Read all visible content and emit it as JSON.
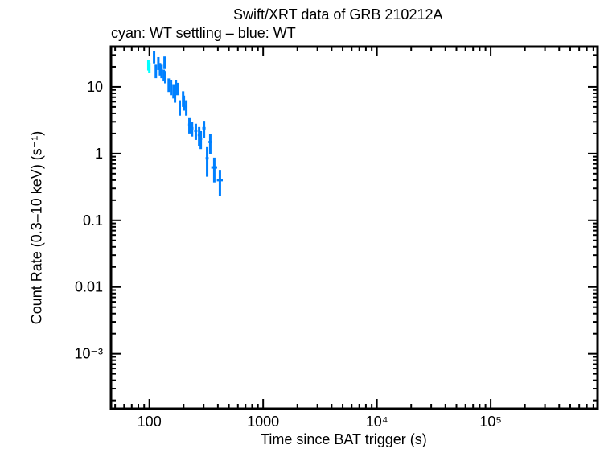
{
  "chart_data": {
    "type": "scatter",
    "title": "Swift/XRT data of GRB 210212A",
    "subtitle": "cyan: WT settling – blue: WT",
    "xlabel": "Time since BAT trigger (s)",
    "ylabel": "Count Rate (0.3–10 keV) (s⁻¹)",
    "xscale": "log",
    "yscale": "log",
    "xlim": [
      46,
      870000
    ],
    "ylim": [
      0.00015,
      40
    ],
    "x_ticks": [
      {
        "v": 100,
        "label": "100"
      },
      {
        "v": 1000,
        "label": "1000"
      },
      {
        "v": 10000,
        "label": "10⁴"
      },
      {
        "v": 100000,
        "label": "10⁵"
      }
    ],
    "y_ticks": [
      {
        "v": 10,
        "label": "10"
      },
      {
        "v": 1,
        "label": "1"
      },
      {
        "v": 0.1,
        "label": "0.1"
      },
      {
        "v": 0.01,
        "label": "0.01"
      },
      {
        "v": 0.001,
        "label": "10⁻³"
      }
    ],
    "grid": false,
    "series": [
      {
        "name": "WT settling",
        "color": "#00ffff",
        "points": [
          {
            "x": 98,
            "y": 21.6,
            "xerr": 2,
            "yerr": 4
          },
          {
            "x": 100,
            "y": 19.5,
            "xerr": 1.5,
            "yerr": 3.5
          }
        ]
      },
      {
        "name": "WT",
        "color": "#0080ff",
        "points": [
          {
            "x": 110,
            "y": 28.5,
            "xerr": 2,
            "yerr": 6
          },
          {
            "x": 114,
            "y": 17.5,
            "xerr": 2,
            "yerr": 4
          },
          {
            "x": 120,
            "y": 22.9,
            "xerr": 2,
            "yerr": 5
          },
          {
            "x": 124,
            "y": 18.8,
            "xerr": 2,
            "yerr": 4
          },
          {
            "x": 128,
            "y": 17.5,
            "xerr": 2,
            "yerr": 4
          },
          {
            "x": 136,
            "y": 23.5,
            "xerr": 2,
            "yerr": 5
          },
          {
            "x": 134,
            "y": 15.1,
            "xerr": 2,
            "yerr": 3
          },
          {
            "x": 138,
            "y": 14.3,
            "xerr": 2,
            "yerr": 3
          },
          {
            "x": 148,
            "y": 10.9,
            "xerr": 3,
            "yerr": 2.5
          },
          {
            "x": 155,
            "y": 10.0,
            "xerr": 3,
            "yerr": 2.5
          },
          {
            "x": 163,
            "y": 8.7,
            "xerr": 3,
            "yerr": 2
          },
          {
            "x": 171,
            "y": 10.0,
            "xerr": 3,
            "yerr": 2.5
          },
          {
            "x": 179,
            "y": 9.5,
            "xerr": 3,
            "yerr": 2
          },
          {
            "x": 168,
            "y": 7.8,
            "xerr": 3,
            "yerr": 2
          },
          {
            "x": 198,
            "y": 6.8,
            "xerr": 4,
            "yerr": 1.8
          },
          {
            "x": 185,
            "y": 5.0,
            "xerr": 4,
            "yerr": 1.3
          },
          {
            "x": 201,
            "y": 5.9,
            "xerr": 4,
            "yerr": 1.5
          },
          {
            "x": 211,
            "y": 5.0,
            "xerr": 5,
            "yerr": 1.3
          },
          {
            "x": 225,
            "y": 2.7,
            "xerr": 6,
            "yerr": 0.7
          },
          {
            "x": 237,
            "y": 2.4,
            "xerr": 7,
            "yerr": 0.6
          },
          {
            "x": 256,
            "y": 2.2,
            "xerr": 8,
            "yerr": 0.6
          },
          {
            "x": 274,
            "y": 1.9,
            "xerr": 8,
            "yerr": 0.6
          },
          {
            "x": 283,
            "y": 1.67,
            "xerr": 8,
            "yerr": 0.5
          },
          {
            "x": 302,
            "y": 2.4,
            "xerr": 10,
            "yerr": 0.7
          },
          {
            "x": 322,
            "y": 0.85,
            "xerr": 10,
            "yerr": 0.4
          },
          {
            "x": 343,
            "y": 1.49,
            "xerr": 12,
            "yerr": 0.5
          },
          {
            "x": 372,
            "y": 0.62,
            "xerr": 22,
            "yerr": 0.25
          },
          {
            "x": 417,
            "y": 0.4,
            "xerr": 25,
            "yerr": 0.17
          }
        ]
      }
    ]
  }
}
